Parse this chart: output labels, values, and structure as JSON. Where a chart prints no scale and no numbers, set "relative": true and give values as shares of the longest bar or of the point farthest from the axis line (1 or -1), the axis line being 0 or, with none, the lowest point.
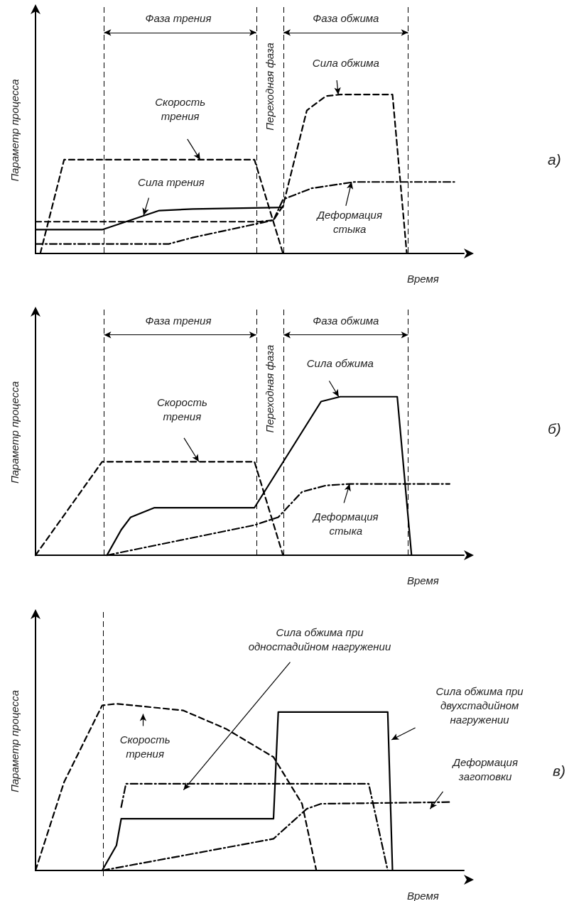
{
  "chart_data": [
    {
      "type": "line",
      "xlabel": "Время",
      "ylabel": "Параметр процесса",
      "relative": true,
      "grid": false,
      "marker": "none",
      "categories": [
        null,
        null,
        null,
        null,
        null,
        null,
        null,
        null,
        null,
        null,
        null,
        null,
        null,
        null,
        null,
        null,
        null,
        null,
        null,
        null,
        null,
        null,
        null,
        null,
        null,
        null,
        null,
        null,
        null,
        null,
        null,
        null,
        null,
        null,
        null,
        null,
        null,
        null,
        null,
        null,
        null,
        null,
        null,
        null,
        null,
        null,
        null,
        null,
        null,
        null,
        null,
        null,
        null,
        null,
        null,
        null,
        null,
        null,
        null,
        null,
        null,
        null,
        null,
        null,
        null,
        null,
        null,
        null,
        null,
        null,
        null,
        null,
        null,
        null,
        null,
        null,
        null,
        null,
        null,
        null,
        null,
        null,
        null,
        null,
        null,
        null,
        null,
        null,
        null,
        null,
        null
      ],
      "series": [
        {
          "color": "#000000",
          "line_style": "dashed",
          "values": [
            null,
            0,
            null,
            null,
            null,
            null,
            0.59,
            null,
            null,
            null,
            null,
            null,
            null,
            null,
            null,
            null,
            null,
            null,
            null,
            null,
            null,
            null,
            null,
            null,
            null,
            null,
            null,
            null,
            null,
            null,
            null,
            null,
            null,
            null,
            null,
            null,
            null,
            null,
            null,
            null,
            null,
            null,
            null,
            null,
            null,
            null,
            0.59,
            null,
            null,
            null,
            null,
            null,
            0,
            null,
            null,
            null,
            null,
            null,
            null,
            null,
            null,
            null,
            null,
            null,
            null,
            null,
            null,
            null,
            null,
            null,
            null,
            null,
            null,
            null,
            null,
            null,
            null,
            null,
            null,
            null,
            null,
            null,
            null,
            null,
            null,
            null,
            null,
            null,
            null,
            null,
            null
          ]
        },
        {
          "color": "#000000",
          "line_style": "solid",
          "values": [
            0.15,
            null,
            null,
            null,
            null,
            null,
            null,
            null,
            null,
            null,
            null,
            null,
            null,
            null,
            0.15,
            null,
            null,
            null,
            null,
            null,
            null,
            null,
            null,
            null,
            null,
            null,
            0.27,
            null,
            null,
            null,
            null,
            null,
            null,
            0.28,
            null,
            null,
            null,
            null,
            null,
            null,
            null,
            null,
            null,
            null,
            null,
            null,
            null,
            null,
            null,
            null,
            null,
            null,
            0.29,
            null,
            null,
            null,
            null,
            null,
            null,
            null,
            null,
            null,
            null,
            null,
            null,
            null,
            null,
            null,
            null,
            null,
            null,
            null,
            null,
            null,
            null,
            null,
            null,
            null,
            null,
            null,
            null,
            null,
            null,
            null,
            null,
            null,
            null,
            null,
            null,
            null,
            null
          ]
        },
        {
          "color": "#000000",
          "line_style": "dashed",
          "values": [
            0.2,
            null,
            null,
            null,
            null,
            null,
            null,
            null,
            null,
            null,
            null,
            null,
            null,
            null,
            null,
            null,
            null,
            null,
            null,
            null,
            null,
            null,
            null,
            null,
            null,
            null,
            null,
            null,
            null,
            null,
            null,
            null,
            null,
            null,
            null,
            null,
            null,
            null,
            null,
            null,
            null,
            null,
            null,
            null,
            null,
            null,
            null,
            0.2,
            null,
            null,
            0.21,
            null,
            0.3,
            null,
            null,
            null,
            null,
            0.9,
            null,
            null,
            null,
            0.99,
            null,
            null,
            1,
            null,
            null,
            null,
            null,
            null,
            null,
            null,
            null,
            null,
            null,
            1,
            null,
            null,
            0,
            null,
            null,
            null,
            null,
            null,
            null,
            null,
            null,
            null,
            null,
            null,
            null
          ]
        },
        {
          "color": "#000000",
          "line_style": "dashdot",
          "values": [
            0.06,
            null,
            null,
            null,
            null,
            null,
            null,
            null,
            null,
            null,
            null,
            null,
            null,
            null,
            null,
            null,
            null,
            null,
            null,
            null,
            null,
            null,
            null,
            null,
            null,
            null,
            null,
            null,
            0.06,
            null,
            null,
            null,
            null,
            0.1,
            null,
            null,
            null,
            null,
            null,
            null,
            null,
            null,
            null,
            null,
            null,
            null,
            null,
            0.19,
            null,
            null,
            0.21,
            null,
            0.34,
            null,
            null,
            null,
            null,
            null,
            0.41,
            null,
            null,
            null,
            null,
            null,
            null,
            null,
            null,
            0.45,
            null,
            null,
            null,
            null,
            null,
            null,
            null,
            null,
            null,
            null,
            null,
            null,
            null,
            null,
            null,
            null,
            null,
            null,
            null,
            null,
            0.45,
            null,
            null
          ]
        }
      ],
      "annotations": [
        "Фаза трения",
        "Переходная фаза",
        "Фаза обжима",
        "Скорость\nтрения",
        "Сила трения",
        "Сила обжима",
        "Деформация\nстыка",
        "а)"
      ]
    },
    {
      "type": "line",
      "xlabel": "Время",
      "ylabel": "Параметр процесса",
      "relative": true,
      "grid": false,
      "marker": "none",
      "categories": [
        null,
        null,
        null,
        null,
        null,
        null,
        null,
        null,
        null,
        null,
        null,
        null,
        null,
        null,
        null,
        null,
        null,
        null,
        null,
        null,
        null,
        null,
        null,
        null,
        null,
        null,
        null,
        null,
        null,
        null,
        null,
        null,
        null,
        null,
        null,
        null,
        null,
        null,
        null,
        null,
        null,
        null,
        null,
        null,
        null,
        null,
        null,
        null,
        null,
        null,
        null,
        null,
        null,
        null,
        null,
        null,
        null,
        null,
        null,
        null,
        null,
        null,
        null,
        null,
        null,
        null,
        null,
        null,
        null,
        null,
        null,
        null,
        null,
        null,
        null,
        null,
        null,
        null,
        null,
        null,
        null,
        null,
        null,
        null,
        null,
        null,
        null,
        null,
        null,
        null,
        null
      ],
      "series": [
        {
          "color": "#000000",
          "line_style": "dashed",
          "values": [
            0,
            null,
            null,
            null,
            null,
            null,
            null,
            null,
            null,
            null,
            null,
            null,
            null,
            null,
            0.59,
            null,
            null,
            null,
            null,
            null,
            null,
            null,
            null,
            null,
            null,
            null,
            null,
            null,
            null,
            null,
            null,
            null,
            null,
            null,
            null,
            null,
            null,
            null,
            null,
            null,
            null,
            null,
            null,
            null,
            null,
            null,
            0.59,
            null,
            null,
            null,
            null,
            null,
            0,
            null,
            null,
            null,
            null,
            null,
            null,
            null,
            null,
            null,
            null,
            null,
            null,
            null,
            null,
            null,
            null,
            null,
            null,
            null,
            null,
            null,
            null,
            null,
            null,
            null,
            null,
            null,
            null,
            null,
            null,
            null,
            null,
            null,
            null,
            null,
            null,
            null,
            null
          ]
        },
        {
          "color": "#000000",
          "line_style": "solid",
          "values": [
            null,
            null,
            null,
            null,
            null,
            null,
            null,
            null,
            null,
            null,
            null,
            null,
            null,
            null,
            null,
            0,
            null,
            null,
            0.16,
            null,
            0.24,
            null,
            null,
            null,
            null,
            0.3,
            null,
            null,
            null,
            null,
            null,
            null,
            null,
            null,
            null,
            null,
            null,
            null,
            null,
            null,
            null,
            null,
            null,
            null,
            null,
            null,
            0.3,
            null,
            null,
            null,
            null,
            null,
            null,
            null,
            null,
            null,
            null,
            null,
            null,
            null,
            0.97,
            null,
            null,
            null,
            1,
            null,
            null,
            null,
            null,
            null,
            null,
            null,
            null,
            null,
            null,
            null,
            1,
            null,
            null,
            0,
            null,
            null,
            null,
            null,
            null,
            null,
            null,
            null,
            null,
            null,
            null
          ]
        },
        {
          "color": "#000000",
          "line_style": "dashdot",
          "values": [
            null,
            null,
            null,
            null,
            null,
            null,
            null,
            null,
            null,
            null,
            null,
            null,
            null,
            null,
            null,
            0,
            null,
            null,
            null,
            null,
            null,
            null,
            null,
            null,
            null,
            null,
            null,
            null,
            null,
            null,
            null,
            null,
            null,
            null,
            null,
            null,
            null,
            null,
            null,
            null,
            null,
            null,
            null,
            null,
            null,
            null,
            0.19,
            null,
            null,
            null,
            null,
            0.24,
            null,
            null,
            null,
            null,
            0.4,
            null,
            null,
            null,
            null,
            0.44,
            null,
            null,
            null,
            null,
            0.45,
            null,
            null,
            null,
            null,
            null,
            null,
            null,
            null,
            null,
            null,
            null,
            null,
            null,
            null,
            null,
            null,
            null,
            null,
            null,
            null,
            0.45,
            null,
            null,
            null
          ]
        }
      ],
      "annotations": [
        "Фаза трения",
        "Переходная фаза",
        "Фаза обжима",
        "Скорость\nтрения",
        "Сила обжима",
        "Деформация\nстыка",
        "б)"
      ]
    },
    {
      "type": "line",
      "xlabel": "Время",
      "ylabel": "Параметр процесса",
      "relative": true,
      "grid": false,
      "marker": "none",
      "categories": [
        null,
        null,
        null,
        null,
        null,
        null,
        null,
        null,
        null,
        null,
        null,
        null,
        null,
        null,
        null,
        null,
        null,
        null,
        null,
        null,
        null,
        null,
        null,
        null,
        null,
        null,
        null,
        null,
        null,
        null,
        null,
        null,
        null,
        null,
        null,
        null,
        null,
        null,
        null,
        null,
        null,
        null,
        null,
        null,
        null,
        null,
        null,
        null,
        null,
        null,
        null,
        null,
        null,
        null,
        null,
        null,
        null,
        null,
        null,
        null,
        null,
        null,
        null,
        null,
        null,
        null,
        null,
        null,
        null,
        null,
        null,
        null,
        null,
        null,
        null,
        null,
        null,
        null,
        null,
        null,
        null,
        null,
        null,
        null,
        null,
        null,
        null,
        null,
        null,
        null,
        null
      ],
      "series": [
        {
          "color": "#000000",
          "line_style": "dashed",
          "values": [
            0,
            null,
            null,
            null,
            null,
            null,
            0.53,
            null,
            null,
            null,
            null,
            null,
            null,
            null,
            0.99,
            null,
            null,
            1,
            null,
            null,
            null,
            null,
            null,
            null,
            null,
            null,
            null,
            null,
            null,
            null,
            null,
            0.96,
            null,
            null,
            null,
            null,
            null,
            null,
            null,
            null,
            0.85,
            null,
            null,
            null,
            null,
            null,
            null,
            null,
            null,
            null,
            0.68,
            null,
            null,
            null,
            null,
            null,
            0.4,
            null,
            null,
            0,
            null,
            null,
            null,
            null,
            null,
            null,
            null,
            null,
            null,
            null,
            null,
            null,
            null,
            null,
            null,
            null,
            null,
            null,
            null,
            null,
            null,
            null,
            null,
            null,
            null,
            null,
            null,
            null,
            null,
            null,
            null
          ]
        },
        {
          "color": "#000000",
          "line_style": "solid",
          "values": [
            null,
            null,
            null,
            null,
            null,
            null,
            null,
            null,
            null,
            null,
            null,
            null,
            null,
            null,
            0,
            null,
            null,
            0.15,
            0.31,
            null,
            null,
            null,
            null,
            null,
            null,
            null,
            null,
            null,
            null,
            null,
            null,
            null,
            null,
            null,
            null,
            null,
            null,
            null,
            null,
            null,
            null,
            null,
            null,
            null,
            null,
            null,
            null,
            null,
            null,
            null,
            0.31,
            0.95,
            null,
            null,
            null,
            null,
            null,
            null,
            null,
            null,
            null,
            null,
            null,
            null,
            null,
            null,
            null,
            null,
            null,
            null,
            null,
            null,
            null,
            null,
            0.95,
            0,
            null,
            null,
            null,
            null,
            null,
            null,
            null,
            null,
            null,
            null,
            null,
            null,
            null,
            null,
            null
          ]
        },
        {
          "color": "#000000",
          "line_style": "dashdot",
          "values": [
            null,
            null,
            null,
            null,
            null,
            null,
            null,
            null,
            null,
            null,
            null,
            null,
            null,
            null,
            null,
            null,
            null,
            null,
            0.38,
            0.52,
            null,
            null,
            null,
            null,
            null,
            null,
            null,
            null,
            null,
            null,
            null,
            null,
            null,
            null,
            null,
            null,
            null,
            null,
            null,
            null,
            null,
            null,
            null,
            null,
            null,
            null,
            null,
            null,
            null,
            null,
            null,
            null,
            null,
            null,
            null,
            null,
            null,
            null,
            null,
            null,
            null,
            null,
            null,
            null,
            null,
            null,
            null,
            null,
            null,
            null,
            0.52,
            null,
            null,
            null,
            0,
            null,
            null,
            null,
            null,
            null,
            null,
            null,
            null,
            null,
            null,
            null,
            null,
            null,
            null,
            null,
            null
          ]
        },
        {
          "color": "#000000",
          "line_style": "dashdot",
          "values": [
            null,
            null,
            null,
            null,
            null,
            null,
            null,
            null,
            null,
            null,
            null,
            null,
            null,
            null,
            0,
            null,
            null,
            null,
            null,
            null,
            null,
            null,
            null,
            null,
            null,
            null,
            null,
            null,
            null,
            null,
            null,
            null,
            null,
            0.1,
            null,
            null,
            null,
            null,
            null,
            null,
            null,
            null,
            null,
            null,
            null,
            null,
            null,
            null,
            null,
            null,
            0.19,
            null,
            null,
            null,
            null,
            null,
            null,
            0.37,
            null,
            null,
            0.4,
            null,
            null,
            null,
            null,
            null,
            null,
            null,
            null,
            null,
            null,
            null,
            null,
            null,
            null,
            null,
            null,
            null,
            null,
            null,
            null,
            null,
            null,
            null,
            null,
            null,
            null,
            0.41,
            null,
            null,
            null
          ]
        }
      ],
      "annotations": [
        "Скорость\nтрения",
        "Сила обжима при\nодностадийном нагружении",
        "Сила обжима при\nдвухстадийном\nнагружении",
        "Деформация\nзаготовки",
        "в)"
      ]
    }
  ]
}
